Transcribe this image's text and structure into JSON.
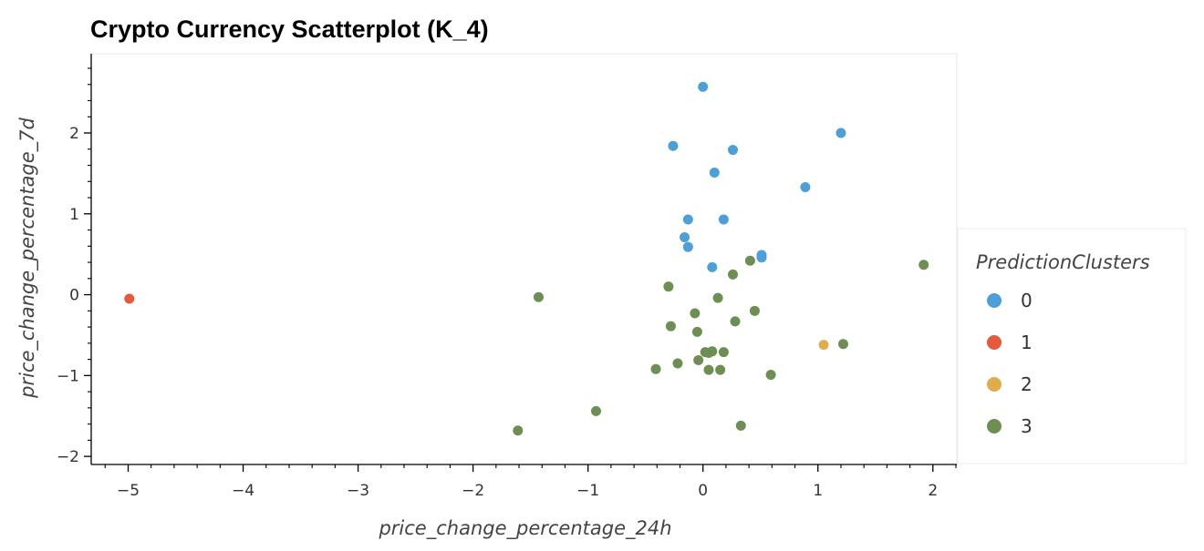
{
  "chart_data": {
    "type": "scatter",
    "title": "Crypto Currency Scatterplot (K_4)",
    "xlabel": "price_change_percentage_24h",
    "ylabel": "price_change_percentage_7d",
    "xlim": [
      -5.25,
      2.2
    ],
    "ylim": [
      -2.1,
      2.98
    ],
    "xticks": [
      -5,
      -4,
      -3,
      -2,
      -1,
      0,
      1,
      2
    ],
    "xtick_labels": [
      "−5",
      "−4",
      "−3",
      "−2",
      "−1",
      "0",
      "1",
      "2"
    ],
    "yticks": [
      -2,
      -1,
      0,
      1,
      2
    ],
    "ytick_labels": [
      "−2",
      "−1",
      "0",
      "1",
      "2"
    ],
    "grid": false,
    "legend": {
      "title": "PredictionClusters",
      "position": "right"
    },
    "series": [
      {
        "name": "0",
        "color": "#4c9fd7",
        "points": [
          {
            "x": 0.0,
            "y": 2.57
          },
          {
            "x": -0.26,
            "y": 1.84
          },
          {
            "x": 0.26,
            "y": 1.79
          },
          {
            "x": 1.2,
            "y": 2.0
          },
          {
            "x": 0.1,
            "y": 1.51
          },
          {
            "x": 0.89,
            "y": 1.33
          },
          {
            "x": -0.13,
            "y": 0.93
          },
          {
            "x": 0.18,
            "y": 0.93
          },
          {
            "x": -0.16,
            "y": 0.71
          },
          {
            "x": -0.13,
            "y": 0.59
          },
          {
            "x": 0.51,
            "y": 0.49
          },
          {
            "x": 0.51,
            "y": 0.46
          },
          {
            "x": 0.08,
            "y": 0.34
          }
        ]
      },
      {
        "name": "1",
        "color": "#e55a3c",
        "points": [
          {
            "x": -4.99,
            "y": -0.05
          }
        ]
      },
      {
        "name": "2",
        "color": "#e1ad4a",
        "points": [
          {
            "x": 1.05,
            "y": -0.62
          }
        ]
      },
      {
        "name": "3",
        "color": "#6e8f53",
        "points": [
          {
            "x": 1.92,
            "y": 0.37
          },
          {
            "x": 0.41,
            "y": 0.42
          },
          {
            "x": 0.26,
            "y": 0.25
          },
          {
            "x": -0.3,
            "y": 0.1
          },
          {
            "x": -1.43,
            "y": -0.03
          },
          {
            "x": 0.13,
            "y": -0.04
          },
          {
            "x": 0.45,
            "y": -0.2
          },
          {
            "x": -0.07,
            "y": -0.23
          },
          {
            "x": 0.28,
            "y": -0.33
          },
          {
            "x": -0.28,
            "y": -0.39
          },
          {
            "x": -0.05,
            "y": -0.46
          },
          {
            "x": 1.22,
            "y": -0.61
          },
          {
            "x": 0.02,
            "y": -0.71
          },
          {
            "x": 0.05,
            "y": -0.72
          },
          {
            "x": 0.08,
            "y": -0.7
          },
          {
            "x": 0.18,
            "y": -0.71
          },
          {
            "x": -0.04,
            "y": -0.81
          },
          {
            "x": -0.22,
            "y": -0.85
          },
          {
            "x": -0.41,
            "y": -0.92
          },
          {
            "x": 0.05,
            "y": -0.93
          },
          {
            "x": 0.15,
            "y": -0.93
          },
          {
            "x": 0.59,
            "y": -0.99
          },
          {
            "x": -0.93,
            "y": -1.44
          },
          {
            "x": 0.33,
            "y": -1.62
          },
          {
            "x": -1.61,
            "y": -1.68
          }
        ]
      }
    ]
  }
}
